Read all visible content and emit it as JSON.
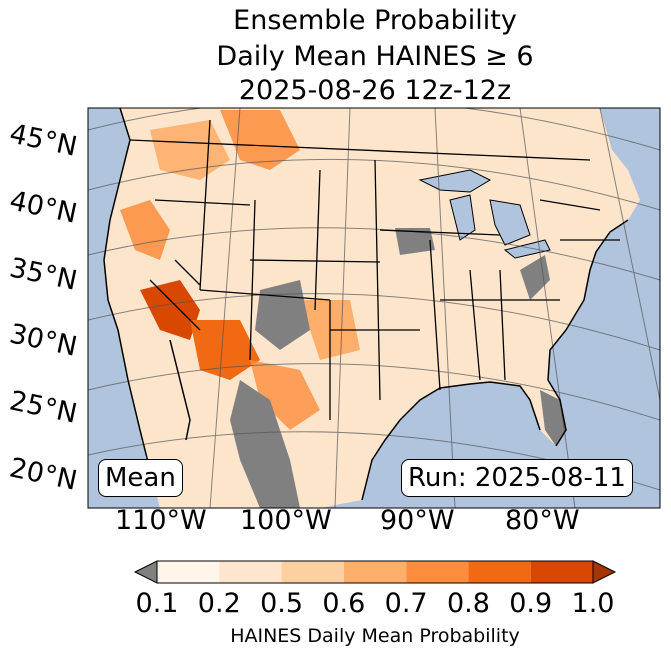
{
  "title": {
    "line1": "Ensemble Probability",
    "line2": "Daily Mean HAINES ≥ 6",
    "line3": "2025-08-26 12z-12z"
  },
  "map": {
    "lat_labels": [
      "45°N",
      "40°N",
      "35°N",
      "30°N",
      "25°N",
      "20°N"
    ],
    "lon_labels": [
      "110°W",
      "100°W",
      "90°W",
      "80°W"
    ],
    "left_box": "Mean",
    "right_box": "Run: 2025-08-11",
    "colors": {
      "ocean": "#b0c4de",
      "land_low": "#fef0e2",
      "missing": "#808080",
      "border": "#000000"
    }
  },
  "colorbar": {
    "label": "HAINES Daily Mean Probability",
    "ticks": [
      "0.1",
      "0.2",
      "0.5",
      "0.6",
      "0.7",
      "0.8",
      "0.9",
      "1.0"
    ],
    "colors": [
      "#fff5eb",
      "#fee6ce",
      "#fdd0a2",
      "#fdae6b",
      "#fd8d3c",
      "#f16913",
      "#d94801",
      "#a63603"
    ],
    "under_color": "#808080"
  }
}
